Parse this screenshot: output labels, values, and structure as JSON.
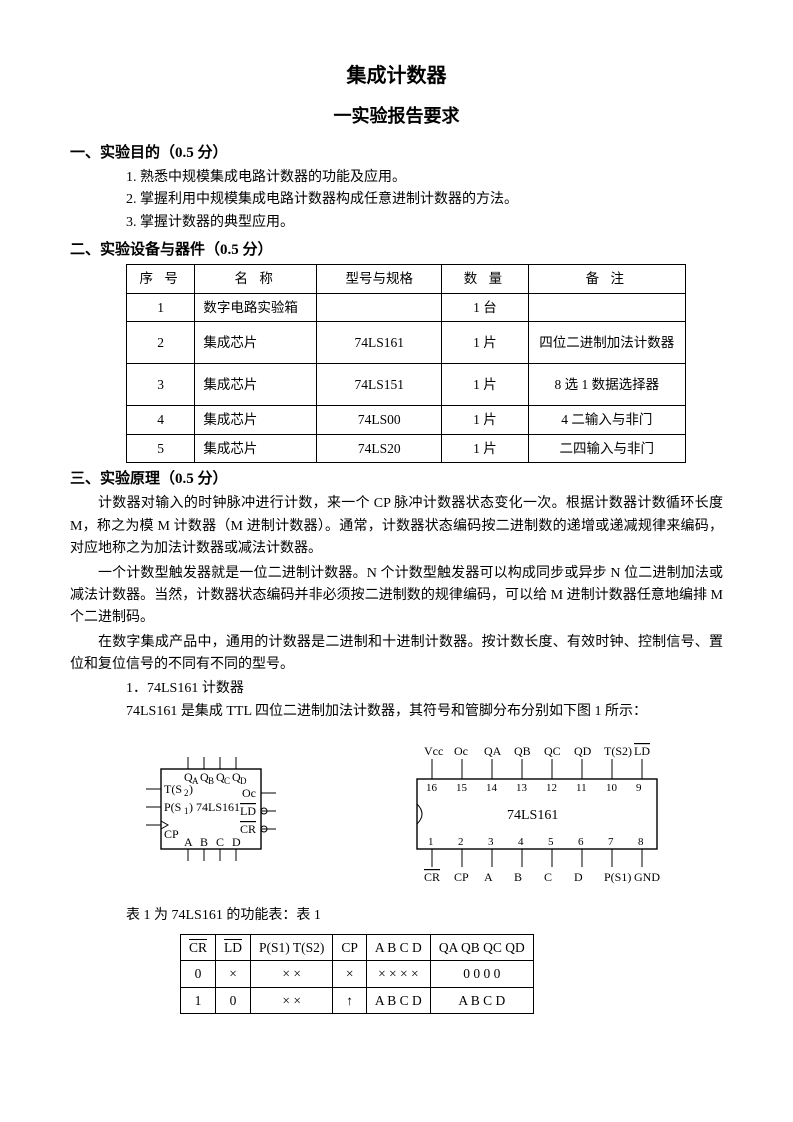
{
  "title": "集成计数器",
  "subtitle": "一实验报告要求",
  "section1": {
    "heading": "一、实验目的（0.5 分）",
    "items": [
      "1. 熟悉中规模集成电路计数器的功能及应用。",
      "2. 掌握利用中规模集成电路计数器构成任意进制计数器的方法。",
      "3. 掌握计数器的典型应用。"
    ]
  },
  "section2": {
    "heading": "二、实验设备与器件（0.5 分）",
    "table": {
      "columns": [
        "序 号",
        "名 称",
        "型号与规格",
        "数 量",
        "备 注"
      ],
      "rows": [
        [
          "1",
          "数字电路实验箱",
          "",
          "1 台",
          ""
        ],
        [
          "2",
          "集成芯片",
          "74LS161",
          "1 片",
          "四位二进制加法计数器"
        ],
        [
          "3",
          "集成芯片",
          "74LS151",
          "1 片",
          "8 选 1 数据选择器"
        ],
        [
          "4",
          "集成芯片",
          "74LS00",
          "1 片",
          "4 二输入与非门"
        ],
        [
          "5",
          "集成芯片",
          "74LS20",
          "1 片",
          "二四输入与非门"
        ]
      ],
      "col_widths": [
        "60px",
        "120px",
        "120px",
        "80px",
        "160px"
      ],
      "row_heights": [
        "auto",
        "40px",
        "40px",
        "auto",
        "auto"
      ]
    }
  },
  "section3": {
    "heading": "三、实验原理（0.5 分）",
    "paras": [
      "计数器对输入的时钟脉冲进行计数，来一个 CP 脉冲计数器状态变化一次。根据计数器计数循环长度 M，称之为模 M 计数器（M 进制计数器）。通常，计数器状态编码按二进制数的递增或递减规律来编码，对应地称之为加法计数器或减法计数器。",
      "一个计数型触发器就是一位二进制计数器。N 个计数型触发器可以构成同步或异步 N 位二进制加法或减法计数器。当然，计数器状态编码并非必须按二进制数的规律编码，可以给 M 进制计数器任意地编排 M 个二进制码。",
      "在数字集成产品中，通用的计数器是二进制和十进制计数器。按计数长度、有效时钟、控制信号、置位和复位信号的不同有不同的型号。"
    ],
    "sub1": "1．74LS161 计数器",
    "sub1_text": "74LS161 是集成 TTL 四位二进制加法计数器，其符号和管脚分布分别如下图 1 所示：",
    "caption": "表 1 为 74LS161 的功能表：表 1"
  },
  "symboldiag": {
    "chip": "74LS161",
    "top": [
      "QA",
      "QB",
      "QC",
      "QD"
    ],
    "left": [
      "T(S2)",
      "P(S1)",
      "CP"
    ],
    "right_Oc": "Oc",
    "right_LD": "LD",
    "right_CR": "CR",
    "bottom": [
      "A",
      "B",
      "C",
      "D"
    ]
  },
  "pindiag": {
    "chip": "74LS161",
    "top_labels": [
      "Vcc",
      "Oc",
      "QA",
      "QB",
      "QC",
      "QD",
      "T(S2)",
      "LD"
    ],
    "top_pins": [
      "16",
      "15",
      "14",
      "13",
      "12",
      "11",
      "10",
      "9"
    ],
    "bot_pins": [
      "1",
      "2",
      "3",
      "4",
      "5",
      "6",
      "7",
      "8"
    ],
    "bot_labels": [
      "CR",
      "CP",
      "A",
      "B",
      "C",
      "D",
      "P(S1)",
      "GND"
    ],
    "overline_top": [
      false,
      false,
      false,
      false,
      false,
      false,
      false,
      true
    ],
    "overline_bot": [
      true,
      false,
      false,
      false,
      false,
      false,
      false,
      false
    ]
  },
  "func_table": {
    "header": [
      "CR",
      "LD",
      "P(S1)  T(S2)",
      "CP",
      "A  B  C  D",
      "QA QB  QC QD"
    ],
    "header_ovl": [
      true,
      true,
      false,
      false,
      false,
      false
    ],
    "rows": [
      [
        "0",
        "×",
        "×     ×",
        "×",
        "× × × ×",
        "0  0  0  0"
      ],
      [
        "1",
        "0",
        "×     ×",
        "↑",
        "A  B  C  D",
        "A  B  C  D"
      ]
    ]
  }
}
